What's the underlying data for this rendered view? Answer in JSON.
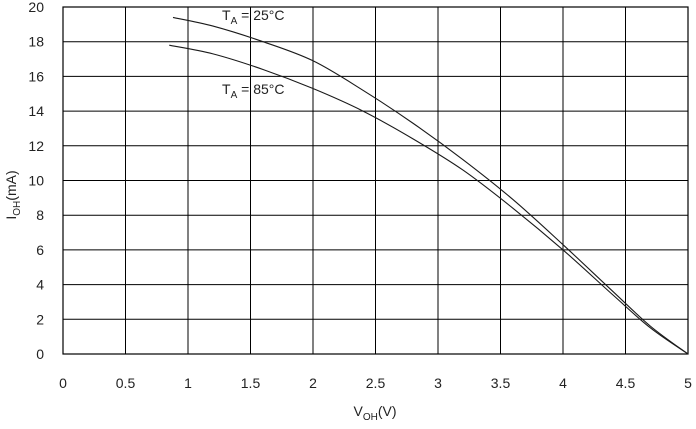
{
  "chart_data": {
    "type": "line",
    "xlabel": {
      "main": "V",
      "sub": "OH",
      "suffix": "(V)"
    },
    "ylabel": {
      "main": "I",
      "sub": "OH",
      "suffix": "(mA)"
    },
    "xlim": [
      0,
      5
    ],
    "ylim": [
      0,
      20
    ],
    "grid": true,
    "x_ticks": [
      "0",
      "0.5",
      "1",
      "1.5",
      "2",
      "2.5",
      "3",
      "3.5",
      "4",
      "4.5",
      "5"
    ],
    "y_ticks": [
      "0",
      "2",
      "4",
      "6",
      "8",
      "10",
      "12",
      "14",
      "16",
      "18",
      "20"
    ],
    "series": [
      {
        "name": {
          "main": "T",
          "sub": "A",
          "suffix": " = 25°C"
        },
        "x": [
          0.88,
          1.2,
          1.6,
          2.0,
          2.4,
          2.8,
          3.2,
          3.6,
          4.0,
          4.4,
          4.7,
          5.0
        ],
        "y": [
          19.4,
          18.9,
          18.0,
          16.9,
          15.2,
          13.3,
          11.2,
          8.9,
          6.3,
          3.6,
          1.6,
          0.0
        ]
      },
      {
        "name": {
          "main": "T",
          "sub": "A",
          "suffix": " = 85°C"
        },
        "x": [
          0.85,
          1.2,
          1.6,
          2.0,
          2.4,
          2.8,
          3.2,
          3.6,
          4.0,
          4.4,
          4.7,
          5.0
        ],
        "y": [
          17.8,
          17.3,
          16.4,
          15.3,
          14.0,
          12.4,
          10.6,
          8.4,
          6.0,
          3.4,
          1.5,
          0.0
        ]
      }
    ]
  }
}
